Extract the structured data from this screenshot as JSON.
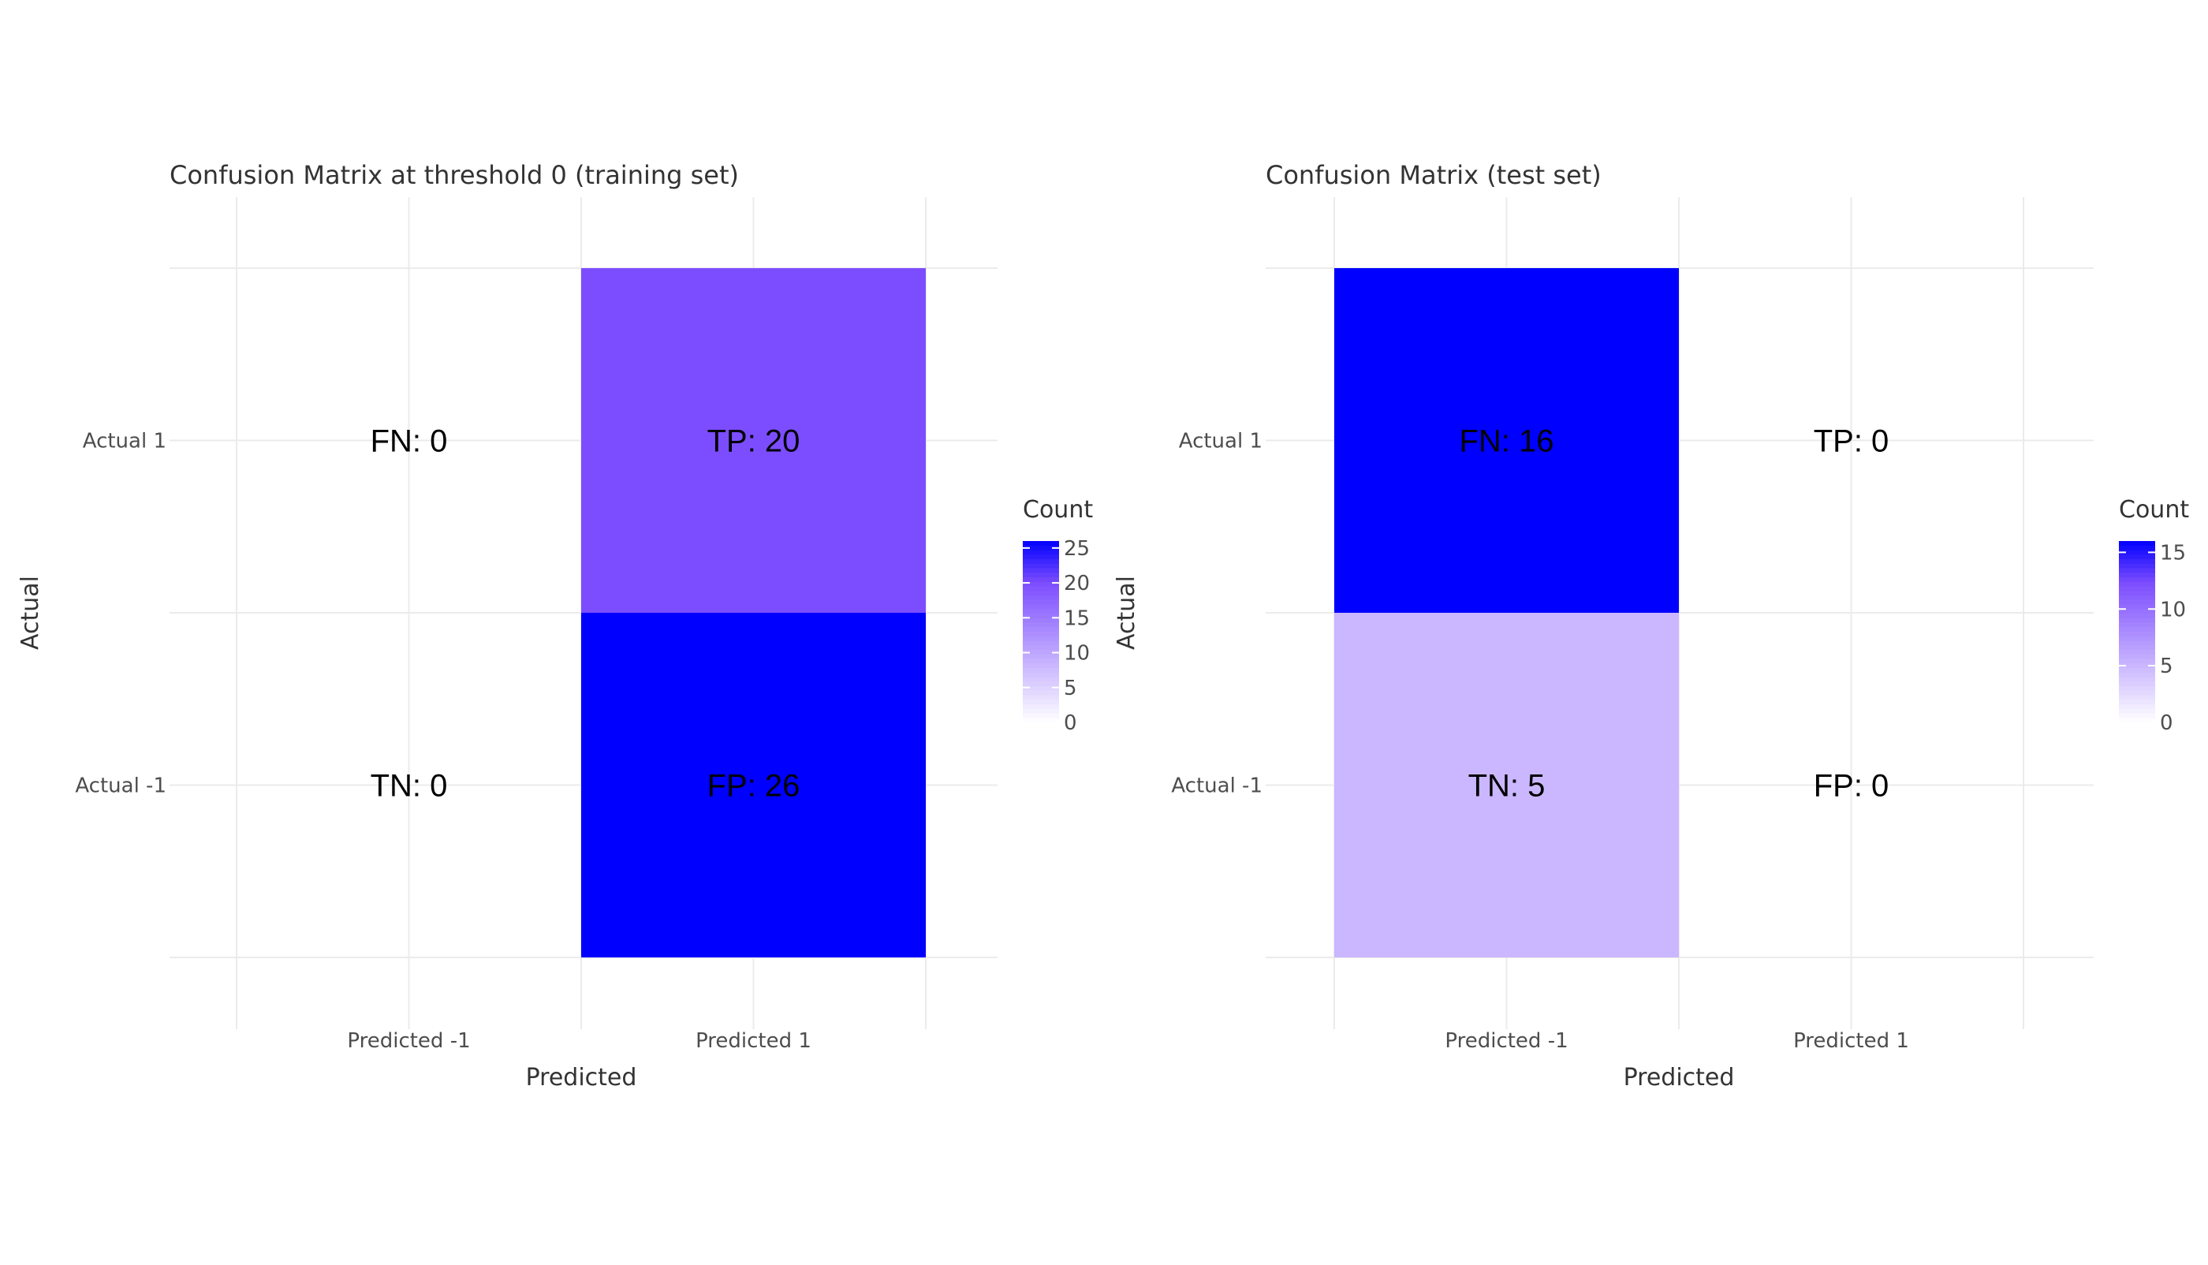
{
  "chart_data": [
    {
      "type": "heatmap",
      "title": "Confusion Matrix at threshold 0 (training set)",
      "xlabel": "Predicted",
      "ylabel": "Actual",
      "x_categories": [
        "Predicted -1",
        "Predicted 1"
      ],
      "y_categories": [
        "Actual 1",
        "Actual -1"
      ],
      "cells": [
        {
          "actual": "Actual 1",
          "predicted": "Predicted -1",
          "label": "FN: 0",
          "value": 0
        },
        {
          "actual": "Actual 1",
          "predicted": "Predicted 1",
          "label": "TP: 20",
          "value": 20
        },
        {
          "actual": "Actual -1",
          "predicted": "Predicted -1",
          "label": "TN: 0",
          "value": 0
        },
        {
          "actual": "Actual -1",
          "predicted": "Predicted 1",
          "label": "FP: 26",
          "value": 26
        }
      ],
      "legend": {
        "title": "Count",
        "ticks": [
          0,
          5,
          10,
          15,
          20,
          25
        ],
        "range": [
          0,
          26
        ],
        "low_color": "#ffffff",
        "high_color": "#0000ff",
        "placement": "right"
      },
      "grid": true
    },
    {
      "type": "heatmap",
      "title": "Confusion Matrix (test set)",
      "xlabel": "Predicted",
      "ylabel": "Actual",
      "x_categories": [
        "Predicted -1",
        "Predicted 1"
      ],
      "y_categories": [
        "Actual 1",
        "Actual -1"
      ],
      "cells": [
        {
          "actual": "Actual 1",
          "predicted": "Predicted -1",
          "label": "FN: 16",
          "value": 16
        },
        {
          "actual": "Actual 1",
          "predicted": "Predicted 1",
          "label": "TP: 0",
          "value": 0
        },
        {
          "actual": "Actual -1",
          "predicted": "Predicted -1",
          "label": "TN: 5",
          "value": 5
        },
        {
          "actual": "Actual -1",
          "predicted": "Predicted 1",
          "label": "FP: 0",
          "value": 0
        }
      ],
      "legend": {
        "title": "Count",
        "ticks": [
          0,
          5,
          10,
          15
        ],
        "range": [
          0,
          16
        ],
        "low_color": "#ffffff",
        "high_color": "#0000ff",
        "placement": "right"
      },
      "grid": true
    }
  ]
}
